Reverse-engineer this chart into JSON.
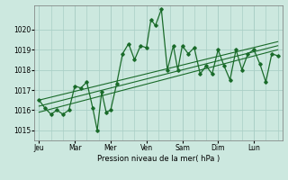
{
  "bg_color": "#cce8df",
  "grid_color": "#aacfc6",
  "line_color": "#1a6b2a",
  "xlabel": "Pression niveau de la mer( hPa )",
  "ylim": [
    1014.5,
    1021.2
  ],
  "yticks": [
    1015,
    1016,
    1017,
    1018,
    1019,
    1020
  ],
  "day_labels": [
    "Jeu",
    "Mar",
    "Mer",
    "Ven",
    "Sam",
    "Dim",
    "Lun"
  ],
  "day_x": [
    0,
    24,
    48,
    72,
    96,
    120,
    144
  ],
  "x_main": [
    0,
    4,
    8,
    12,
    16,
    20,
    24,
    28,
    32,
    36,
    39,
    42,
    45,
    48,
    52,
    56,
    60,
    64,
    68,
    72,
    75,
    78,
    82,
    86,
    90,
    93,
    96,
    100,
    104,
    108,
    112,
    116,
    120,
    124,
    128,
    132,
    136,
    140,
    144,
    148,
    152,
    156,
    160
  ],
  "y_main": [
    1016.5,
    1016.1,
    1015.8,
    1016.0,
    1015.8,
    1016.0,
    1017.2,
    1017.1,
    1017.4,
    1016.1,
    1015.0,
    1016.9,
    1015.9,
    1016.0,
    1017.3,
    1018.8,
    1019.3,
    1018.5,
    1019.2,
    1019.1,
    1020.5,
    1020.2,
    1021.0,
    1018.0,
    1019.2,
    1018.0,
    1019.2,
    1018.8,
    1019.1,
    1017.8,
    1018.2,
    1017.8,
    1019.0,
    1018.2,
    1017.5,
    1019.0,
    1018.0,
    1018.8,
    1019.0,
    1018.3,
    1017.4,
    1018.8,
    1018.7
  ],
  "trend_x": [
    0,
    160
  ],
  "trend1_y": [
    1015.9,
    1019.0
  ],
  "trend2_y": [
    1016.2,
    1019.2
  ],
  "trend3_y": [
    1016.5,
    1019.4
  ],
  "xlim": [
    -3,
    163
  ]
}
